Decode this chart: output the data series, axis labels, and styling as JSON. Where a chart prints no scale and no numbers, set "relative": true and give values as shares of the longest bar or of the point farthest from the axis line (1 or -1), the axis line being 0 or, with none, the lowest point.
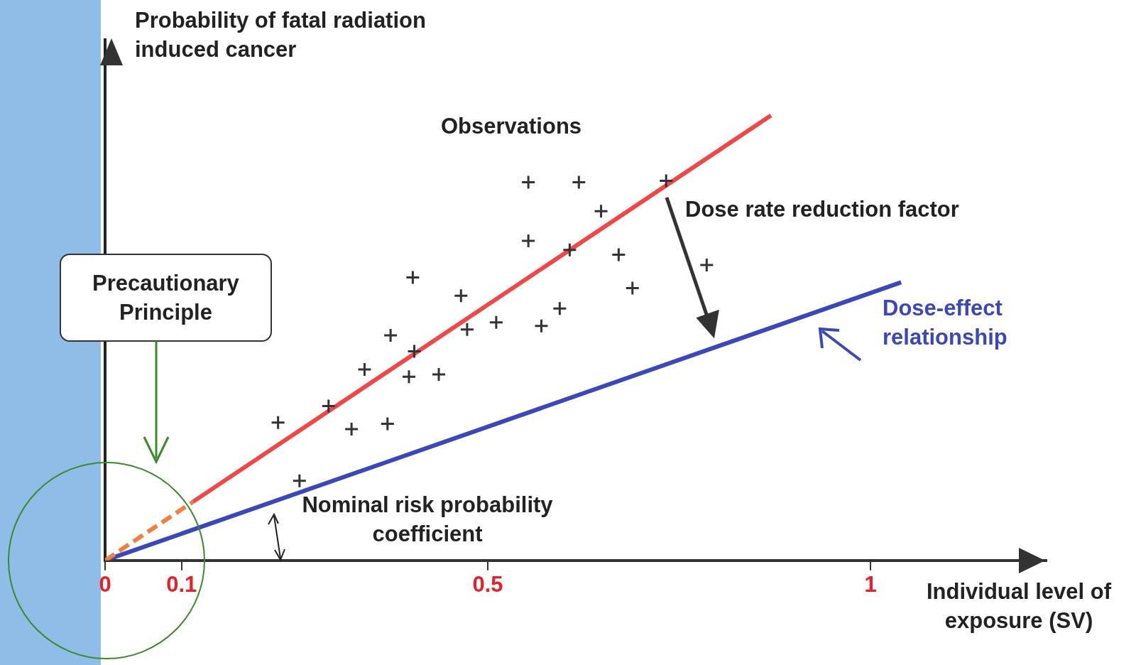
{
  "chart_data": {
    "type": "line",
    "relative": true,
    "xlabel": "Individual level of exposure (SV)",
    "ylabel": "Probability of fatal radiation induced cancer",
    "xlim": [
      0,
      1.23
    ],
    "xticks": [
      0,
      0.1,
      0.5,
      1
    ],
    "annotations": [
      "Dose rate reduction factor",
      "Precautionary Principle",
      "Nominal risk probability coefficient"
    ],
    "series": [
      {
        "name": "Observations",
        "type": "scatter",
        "color": "#333333",
        "marker": "cross",
        "x": [
          0.553,
          0.619,
          0.733,
          0.648,
          0.553,
          0.607,
          0.671,
          0.786,
          0.402,
          0.689,
          0.465,
          0.594,
          0.511,
          0.57,
          0.473,
          0.373,
          0.404,
          0.339,
          0.397,
          0.436,
          0.292,
          0.226,
          0.322,
          0.369,
          0.254
        ],
        "values": [
          0.85,
          0.85,
          0.853,
          0.785,
          0.718,
          0.698,
          0.687,
          0.664,
          0.636,
          0.612,
          0.595,
          0.566,
          0.535,
          0.527,
          0.519,
          0.506,
          0.47,
          0.429,
          0.413,
          0.418,
          0.347,
          0.31,
          0.295,
          0.307,
          0.179
        ]
      },
      {
        "color": "#f04848",
        "x": [
          0.115,
          0.87
        ],
        "values": [
          0.132,
          1
        ]
      },
      {
        "color": "#f08040",
        "line_style": "dashed",
        "x": [
          0,
          0.115
        ],
        "values": [
          0,
          0.132
        ]
      },
      {
        "name": "Dose-effect relationship",
        "color": "#3c48b8",
        "x": [
          0,
          1.04
        ],
        "values": [
          0,
          0.625
        ]
      }
    ]
  }
}
